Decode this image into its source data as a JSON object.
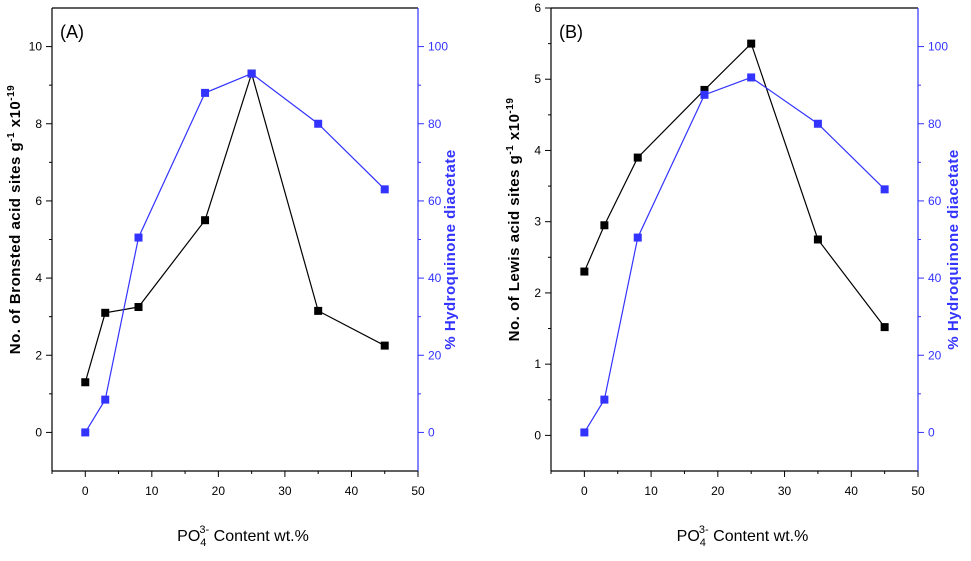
{
  "colors": {
    "left_series": "#000000",
    "right_series": "#3333ff",
    "right_axis": "#3333ff"
  },
  "chart_data": [
    {
      "type": "line",
      "panel_label": "(A)",
      "xlabel_main": "PO",
      "xlabel_sub": "4",
      "xlabel_sup": "3-",
      "xlabel_rest": " Content wt.%",
      "xlim": [
        -5,
        50
      ],
      "x_ticks": [
        0,
        10,
        20,
        30,
        40,
        50
      ],
      "ylabel_left_prefix": "No. of Bronsted acid sites g",
      "ylabel_left_sup1": "-1",
      "ylabel_left_mid": " x10",
      "ylabel_left_sup2": "-19",
      "ylim_left": [
        -1,
        11
      ],
      "y_ticks_left": [
        0,
        2,
        4,
        6,
        8,
        10
      ],
      "ylabel_right": "% Hydroquinone diacetate",
      "ylim_right": [
        -10,
        110
      ],
      "y_ticks_right": [
        0,
        20,
        40,
        60,
        80,
        100
      ],
      "grid": false,
      "series": [
        {
          "axis": "left",
          "x": [
            0,
            3,
            8,
            18,
            25,
            35,
            45
          ],
          "y": [
            1.3,
            3.1,
            3.25,
            5.5,
            9.3,
            3.15,
            2.25
          ]
        },
        {
          "axis": "right",
          "x": [
            0,
            3,
            8,
            18,
            25,
            35,
            45
          ],
          "y": [
            0,
            8.5,
            50.5,
            88,
            93,
            80,
            63
          ]
        }
      ]
    },
    {
      "type": "line",
      "panel_label": "(B)",
      "xlabel_main": "PO",
      "xlabel_sub": "4",
      "xlabel_sup": "3-",
      "xlabel_rest": " Content wt.%",
      "xlim": [
        -5,
        50
      ],
      "x_ticks": [
        0,
        10,
        20,
        30,
        40,
        50
      ],
      "ylabel_left_prefix": "No. of Lewis acid sites g",
      "ylabel_left_sup1": "-1",
      "ylabel_left_mid": " x10",
      "ylabel_left_sup2": "-19",
      "ylim_left": [
        -0.5,
        6
      ],
      "y_ticks_left": [
        0,
        1,
        2,
        3,
        4,
        5,
        6
      ],
      "ylabel_right": "% Hydroquinone diacetate",
      "ylim_right": [
        -10,
        110
      ],
      "y_ticks_right": [
        0,
        20,
        40,
        60,
        80,
        100
      ],
      "grid": false,
      "series": [
        {
          "axis": "left",
          "x": [
            0,
            3,
            8,
            18,
            25,
            35,
            45
          ],
          "y": [
            2.3,
            2.95,
            3.9,
            4.85,
            5.5,
            2.75,
            1.52
          ]
        },
        {
          "axis": "right",
          "x": [
            0,
            3,
            8,
            18,
            25,
            35,
            45
          ],
          "y": [
            0,
            8.5,
            50.5,
            87.5,
            92,
            80,
            63
          ]
        }
      ]
    }
  ]
}
